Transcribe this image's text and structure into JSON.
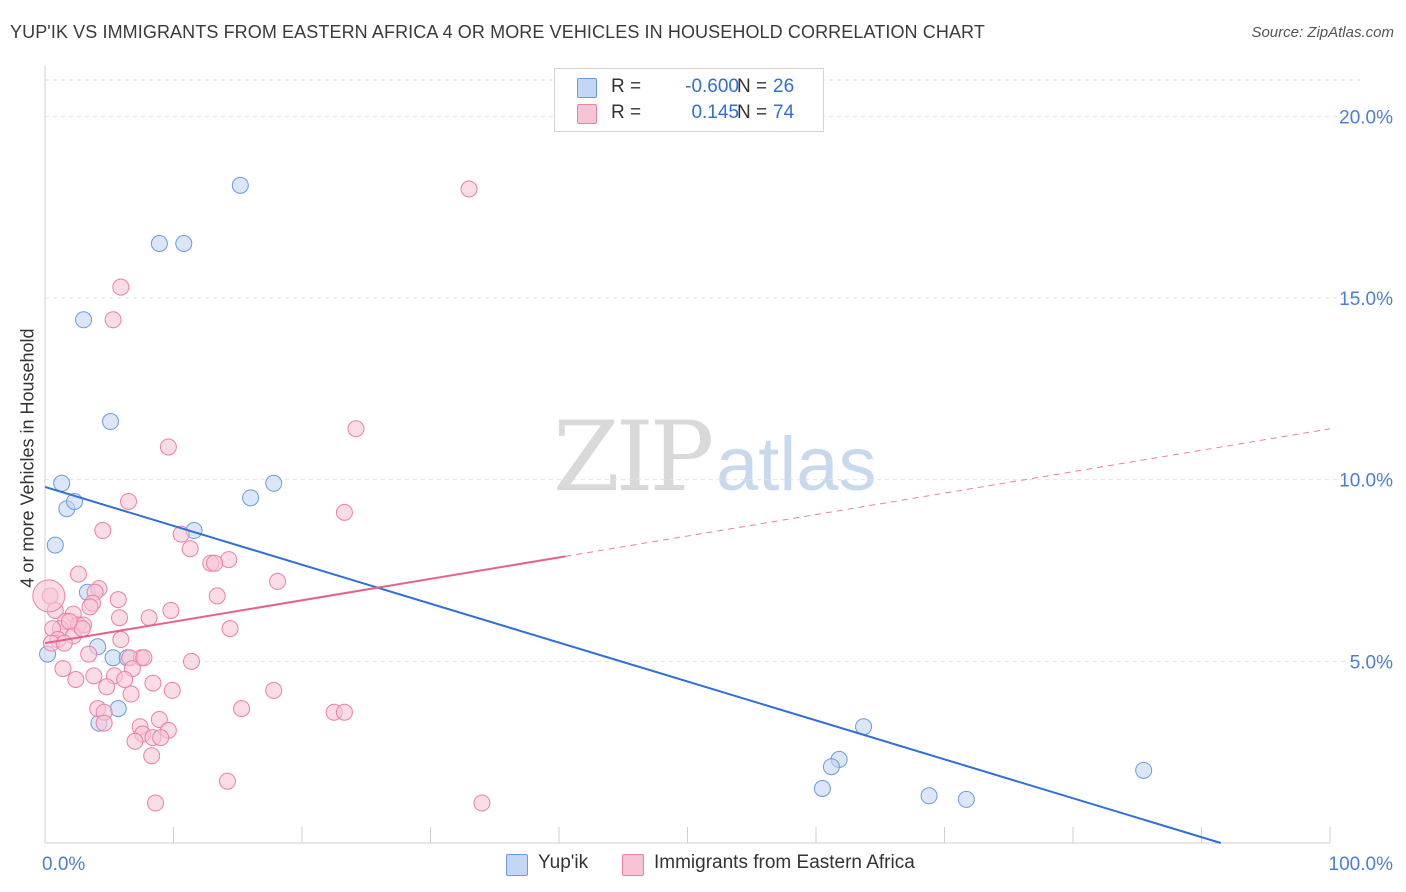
{
  "header": {
    "title": "YUP'IK VS IMMIGRANTS FROM EASTERN AFRICA 4 OR MORE VEHICLES IN HOUSEHOLD CORRELATION CHART",
    "source": "Source: ZipAtlas.com"
  },
  "legend": {
    "r_label": "R =",
    "n_label": "N =",
    "items": [
      {
        "name": "Yup'ik",
        "r": "-0.600",
        "n": "26",
        "color": "#6a9be0"
      },
      {
        "name": "Immigrants from Eastern Africa",
        "r": "0.145",
        "n": "74",
        "color": "#ee7fa5"
      }
    ]
  },
  "watermark": {
    "zip": "ZIP",
    "atlas": "atlas"
  },
  "chart_data": {
    "type": "scatter",
    "title": "YUP'IK VS IMMIGRANTS FROM EASTERN AFRICA 4 OR MORE VEHICLES IN HOUSEHOLD CORRELATION CHART",
    "xlabel": "",
    "ylabel": "4 or more Vehicles in Household",
    "xlim": [
      0,
      100
    ],
    "ylim": [
      0,
      21
    ],
    "x_tick_labels": {
      "0": "0.0%",
      "100": "100.0%"
    },
    "y_ticks": [
      {
        "value": 5,
        "label": "5.0%"
      },
      {
        "value": 10,
        "label": "10.0%"
      },
      {
        "value": 15,
        "label": "15.0%"
      },
      {
        "value": 20,
        "label": "20.0%"
      }
    ],
    "series": [
      {
        "name": "Yup'ik",
        "color": "#6a9be0",
        "fill": "#c3d6f3",
        "regression": {
          "x0": 0,
          "y0": 9.8,
          "x1": 91.5,
          "y1": 0,
          "dashed_from": null
        },
        "points": [
          [
            15.2,
            18.1
          ],
          [
            8.9,
            16.5
          ],
          [
            10.8,
            16.5
          ],
          [
            3.0,
            14.4
          ],
          [
            5.1,
            11.6
          ],
          [
            1.3,
            9.9
          ],
          [
            17.8,
            9.9
          ],
          [
            1.7,
            9.2
          ],
          [
            2.3,
            9.4
          ],
          [
            16.0,
            9.5
          ],
          [
            11.6,
            8.6
          ],
          [
            0.8,
            8.2
          ],
          [
            3.3,
            6.9
          ],
          [
            4.1,
            5.4
          ],
          [
            0.2,
            5.2
          ],
          [
            5.3,
            5.1
          ],
          [
            6.4,
            5.1
          ],
          [
            5.7,
            3.7
          ],
          [
            4.2,
            3.3
          ],
          [
            63.7,
            3.2
          ],
          [
            61.8,
            2.3
          ],
          [
            61.2,
            2.1
          ],
          [
            85.5,
            2.0
          ],
          [
            60.5,
            1.5
          ],
          [
            68.8,
            1.3
          ],
          [
            71.7,
            1.2
          ]
        ]
      },
      {
        "name": "Immigrants from Eastern Africa",
        "color": "#ee7fa5",
        "fill": "#f6c4d5",
        "regression": {
          "x0": 0,
          "y0": 5.5,
          "x1": 100,
          "y1": 11.4,
          "dashed_from": 40.5
        },
        "points": [
          [
            33.0,
            18.0
          ],
          [
            5.9,
            15.3
          ],
          [
            5.3,
            14.4
          ],
          [
            24.2,
            11.4
          ],
          [
            9.6,
            10.9
          ],
          [
            6.5,
            9.4
          ],
          [
            23.3,
            9.1
          ],
          [
            4.5,
            8.6
          ],
          [
            10.6,
            8.5
          ],
          [
            11.3,
            8.1
          ],
          [
            12.9,
            7.7
          ],
          [
            14.3,
            7.8
          ],
          [
            13.2,
            7.7
          ],
          [
            18.1,
            7.2
          ],
          [
            2.6,
            7.4
          ],
          [
            0.4,
            6.8
          ],
          [
            4.2,
            7.0
          ],
          [
            3.9,
            6.9
          ],
          [
            5.7,
            6.7
          ],
          [
            13.4,
            6.8
          ],
          [
            3.7,
            6.6
          ],
          [
            3.5,
            6.5
          ],
          [
            0.8,
            6.4
          ],
          [
            9.8,
            6.4
          ],
          [
            2.2,
            6.3
          ],
          [
            5.8,
            6.2
          ],
          [
            8.1,
            6.2
          ],
          [
            1.6,
            6.1
          ],
          [
            2.6,
            6.0
          ],
          [
            3.0,
            6.0
          ],
          [
            1.2,
            5.9
          ],
          [
            0.6,
            5.9
          ],
          [
            14.4,
            5.9
          ],
          [
            2.2,
            5.7
          ],
          [
            5.9,
            5.6
          ],
          [
            1.0,
            5.6
          ],
          [
            0.5,
            5.5
          ],
          [
            1.5,
            5.5
          ],
          [
            3.4,
            5.2
          ],
          [
            7.5,
            5.1
          ],
          [
            6.6,
            5.1
          ],
          [
            7.7,
            5.1
          ],
          [
            1.4,
            4.8
          ],
          [
            6.8,
            4.8
          ],
          [
            5.4,
            4.6
          ],
          [
            3.8,
            4.6
          ],
          [
            2.4,
            4.5
          ],
          [
            8.4,
            4.4
          ],
          [
            4.8,
            4.3
          ],
          [
            9.9,
            4.2
          ],
          [
            17.8,
            4.2
          ],
          [
            6.7,
            4.1
          ],
          [
            4.1,
            3.7
          ],
          [
            15.3,
            3.7
          ],
          [
            4.6,
            3.6
          ],
          [
            22.5,
            3.6
          ],
          [
            23.3,
            3.6
          ],
          [
            8.9,
            3.4
          ],
          [
            4.6,
            3.3
          ],
          [
            7.4,
            3.2
          ],
          [
            9.6,
            3.1
          ],
          [
            7.6,
            3.0
          ],
          [
            8.4,
            2.9
          ],
          [
            9.0,
            2.9
          ],
          [
            7.0,
            2.8
          ],
          [
            8.3,
            2.4
          ],
          [
            14.2,
            1.7
          ],
          [
            34.0,
            1.1
          ],
          [
            8.6,
            1.1
          ],
          [
            0.3,
            6.8
          ],
          [
            2.9,
            5.9
          ],
          [
            1.9,
            6.1
          ],
          [
            6.2,
            4.5
          ],
          [
            11.4,
            5.0
          ]
        ]
      }
    ],
    "grid": true,
    "legend_position": "top-center"
  }
}
